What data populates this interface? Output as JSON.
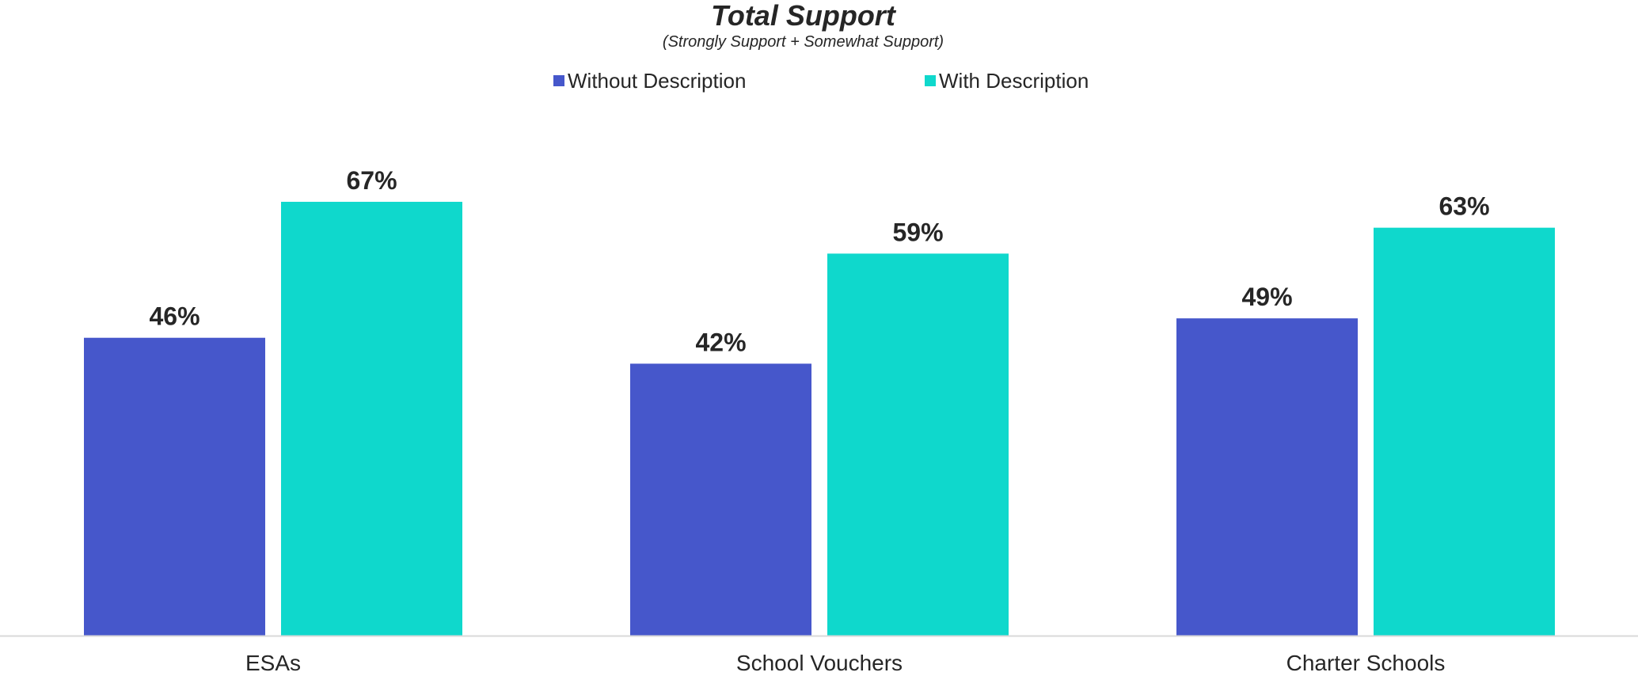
{
  "chart_data": {
    "type": "bar",
    "title": "Total Support",
    "subtitle": "(Strongly Support + Somewhat Support)",
    "categories": [
      "ESAs",
      "School Vouchers",
      "Charter Schools"
    ],
    "series": [
      {
        "name": "Without Description",
        "color": "#4657CB",
        "values": [
          46,
          42,
          49
        ]
      },
      {
        "name": "With Description",
        "color": "#0FD8CC",
        "values": [
          67,
          59,
          63
        ]
      }
    ],
    "value_suffix": "%",
    "ylim": [
      0,
      100
    ],
    "grid": false,
    "legend_position": "top-center",
    "axis_color": "#D9D9D9"
  }
}
